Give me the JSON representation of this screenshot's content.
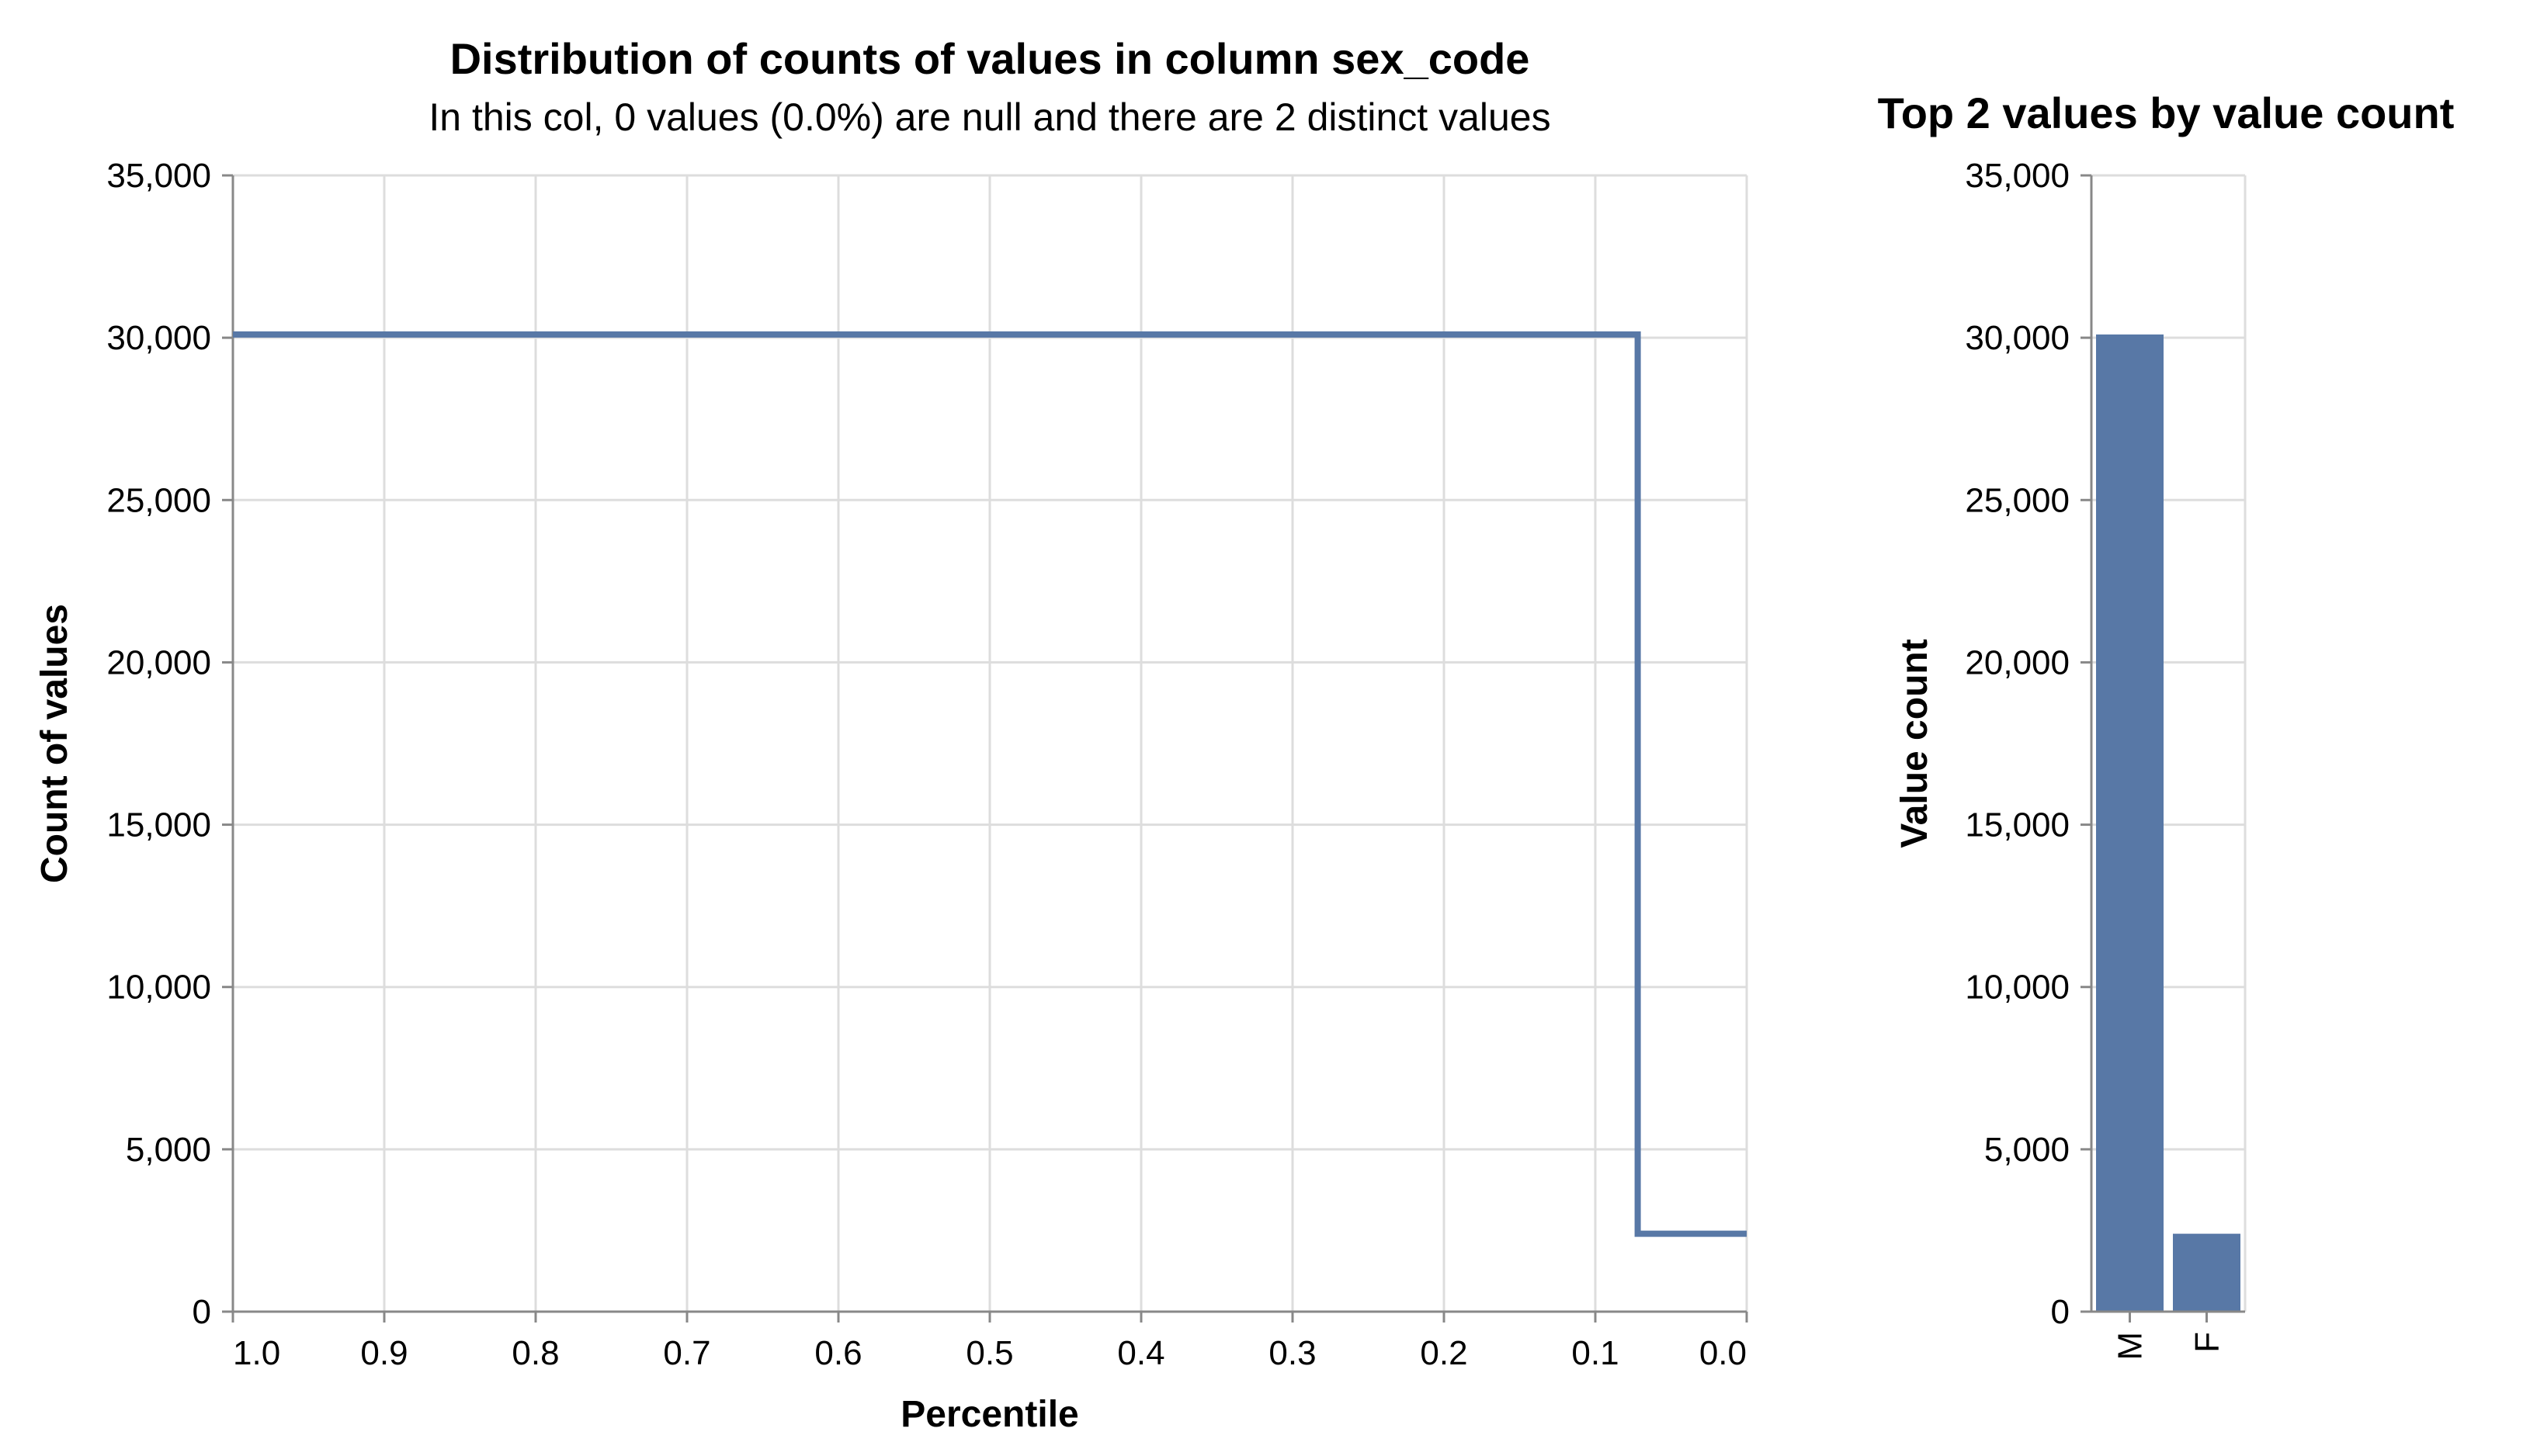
{
  "chart_data": [
    {
      "type": "line",
      "interpolation": "step",
      "title": "Distribution of counts of values in column sex_code",
      "subtitle": "In this col, 0 values (0.0%) are null and there are 2 distinct values",
      "xlabel": "Percentile",
      "ylabel": "Count of values",
      "xlim": [
        1.0,
        0.0
      ],
      "ylim": [
        0,
        35000
      ],
      "x_reversed": true,
      "grid": true,
      "x_ticks": [
        "1.0",
        "0.9",
        "0.8",
        "0.7",
        "0.6",
        "0.5",
        "0.4",
        "0.3",
        "0.2",
        "0.1",
        "0.0"
      ],
      "y_ticks": [
        "0",
        "5,000",
        "10,000",
        "15,000",
        "20,000",
        "25,000",
        "30,000",
        "35,000"
      ],
      "color": "#5878a6",
      "series": [
        {
          "x": [
            1.0,
            0.072,
            0.072,
            0.0
          ],
          "y": [
            30100,
            30100,
            2400,
            2400
          ]
        }
      ]
    },
    {
      "type": "bar",
      "title": "Top 2 values by value count",
      "xlabel": "",
      "ylabel": "Value count",
      "ylim": [
        0,
        35000
      ],
      "grid": true,
      "y_ticks": [
        "0",
        "5,000",
        "10,000",
        "15,000",
        "20,000",
        "25,000",
        "30,000",
        "35,000"
      ],
      "color": "#5878a6",
      "categories": [
        "M",
        "F"
      ],
      "values": [
        30100,
        2400
      ]
    }
  ]
}
